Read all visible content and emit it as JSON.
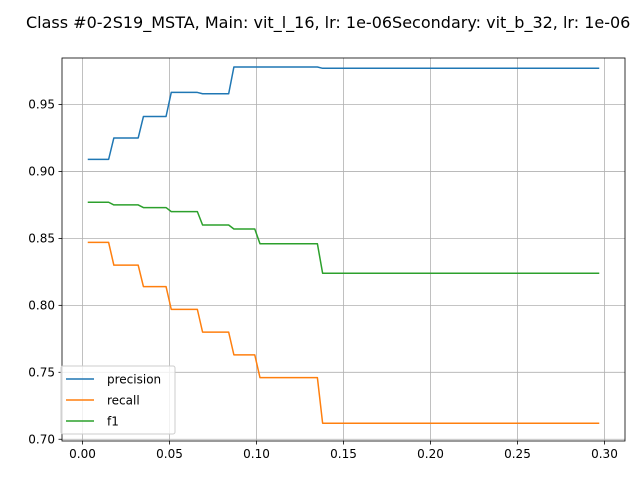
{
  "chart_data": {
    "type": "line",
    "title": "Class #0-2S19_MSTA, Main: vit_l_16, lr: 1e-06Secondary: vit_b_32, lr: 1e-06",
    "xlabel": "",
    "ylabel": "",
    "xlim": [
      -0.0118,
      0.3118
    ],
    "ylim": [
      0.6987,
      0.9847
    ],
    "x_ticks": [
      0.0,
      0.05,
      0.1,
      0.15,
      0.2,
      0.25,
      0.3
    ],
    "x_tick_labels": [
      "0.00",
      "0.05",
      "0.10",
      "0.15",
      "0.20",
      "0.25",
      "0.30"
    ],
    "y_ticks": [
      0.7,
      0.75,
      0.8,
      0.85,
      0.9,
      0.95
    ],
    "y_tick_labels": [
      "0.70",
      "0.75",
      "0.80",
      "0.85",
      "0.90",
      "0.95"
    ],
    "grid": true,
    "legend_position": "lower-left",
    "series": [
      {
        "name": "precision",
        "color": "#1f77b4",
        "points": [
          [
            0.003,
            0.909
          ],
          [
            0.015,
            0.909
          ],
          [
            0.018,
            0.925
          ],
          [
            0.032,
            0.925
          ],
          [
            0.035,
            0.941
          ],
          [
            0.048,
            0.941
          ],
          [
            0.051,
            0.959
          ],
          [
            0.066,
            0.959
          ],
          [
            0.069,
            0.958
          ],
          [
            0.084,
            0.958
          ],
          [
            0.087,
            0.978
          ],
          [
            0.099,
            0.978
          ],
          [
            0.102,
            0.978
          ],
          [
            0.135,
            0.978
          ],
          [
            0.138,
            0.977
          ],
          [
            0.297,
            0.977
          ]
        ]
      },
      {
        "name": "recall",
        "color": "#ff7f0e",
        "points": [
          [
            0.003,
            0.847
          ],
          [
            0.015,
            0.847
          ],
          [
            0.018,
            0.83
          ],
          [
            0.032,
            0.83
          ],
          [
            0.035,
            0.814
          ],
          [
            0.048,
            0.814
          ],
          [
            0.051,
            0.797
          ],
          [
            0.066,
            0.797
          ],
          [
            0.069,
            0.78
          ],
          [
            0.084,
            0.78
          ],
          [
            0.087,
            0.763
          ],
          [
            0.099,
            0.763
          ],
          [
            0.102,
            0.746
          ],
          [
            0.135,
            0.746
          ],
          [
            0.138,
            0.712
          ],
          [
            0.297,
            0.712
          ]
        ]
      },
      {
        "name": "f1",
        "color": "#2ca02c",
        "points": [
          [
            0.003,
            0.877
          ],
          [
            0.015,
            0.877
          ],
          [
            0.018,
            0.875
          ],
          [
            0.032,
            0.875
          ],
          [
            0.035,
            0.873
          ],
          [
            0.048,
            0.873
          ],
          [
            0.051,
            0.87
          ],
          [
            0.066,
            0.87
          ],
          [
            0.069,
            0.86
          ],
          [
            0.084,
            0.86
          ],
          [
            0.087,
            0.857
          ],
          [
            0.099,
            0.857
          ],
          [
            0.102,
            0.846
          ],
          [
            0.135,
            0.846
          ],
          [
            0.138,
            0.824
          ],
          [
            0.297,
            0.824
          ]
        ]
      }
    ]
  }
}
